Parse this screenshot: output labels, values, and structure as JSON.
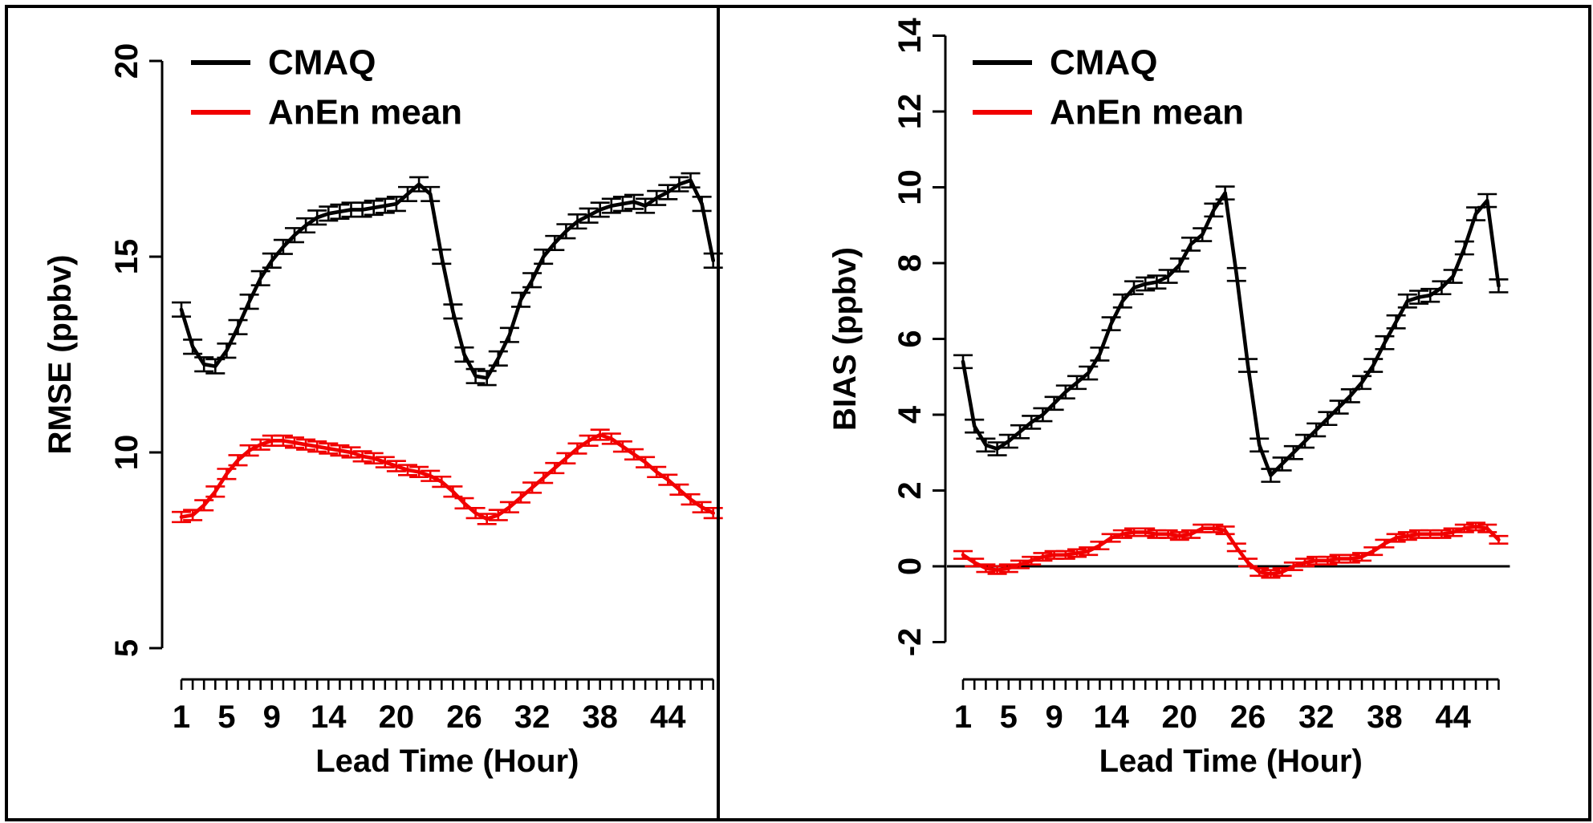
{
  "figure": {
    "background": "#ffffff",
    "frame_color": "#000000",
    "accent_red": "#f10000",
    "accent_black": "#000000"
  },
  "legend": {
    "entries": [
      {
        "label": "CMAQ",
        "color": "#000000"
      },
      {
        "label": "AnEn mean",
        "color": "#f10000"
      }
    ]
  },
  "chart_data": [
    {
      "type": "line",
      "title": "",
      "xlabel": "Lead Time (Hour)",
      "ylabel": "RMSE (ppbv)",
      "x": [
        1,
        2,
        3,
        4,
        5,
        6,
        7,
        8,
        9,
        10,
        11,
        12,
        13,
        14,
        15,
        16,
        17,
        18,
        19,
        20,
        21,
        22,
        23,
        24,
        25,
        26,
        27,
        28,
        29,
        30,
        31,
        32,
        33,
        34,
        35,
        36,
        37,
        38,
        39,
        40,
        41,
        42,
        43,
        44,
        45,
        46,
        47,
        48
      ],
      "xticks_labeled": [
        1,
        5,
        9,
        14,
        20,
        26,
        32,
        38,
        44
      ],
      "ylim": [
        5,
        20
      ],
      "yticks": [
        5,
        10,
        15,
        20
      ],
      "grid": false,
      "zero_line": false,
      "legend_position": "top-left",
      "series": [
        {
          "name": "CMAQ",
          "color": "#000000",
          "error_bar": 0.18,
          "values": [
            13.65,
            12.7,
            12.25,
            12.2,
            12.6,
            13.2,
            13.85,
            14.45,
            14.9,
            15.25,
            15.55,
            15.8,
            16.0,
            16.1,
            16.15,
            16.2,
            16.2,
            16.25,
            16.3,
            16.35,
            16.6,
            16.85,
            16.6,
            15.0,
            13.6,
            12.5,
            11.95,
            11.9,
            12.4,
            13.0,
            13.9,
            14.4,
            15.0,
            15.35,
            15.65,
            15.9,
            16.05,
            16.2,
            16.3,
            16.35,
            16.4,
            16.3,
            16.5,
            16.65,
            16.85,
            16.95,
            16.35,
            14.9
          ]
        },
        {
          "name": "AnEn mean",
          "color": "#f10000",
          "error_bar": 0.13,
          "values": [
            8.35,
            8.4,
            8.65,
            9.0,
            9.45,
            9.8,
            10.05,
            10.2,
            10.3,
            10.3,
            10.25,
            10.2,
            10.15,
            10.1,
            10.05,
            10.0,
            9.9,
            9.85,
            9.75,
            9.65,
            9.55,
            9.5,
            9.4,
            9.25,
            9.0,
            8.7,
            8.45,
            8.3,
            8.4,
            8.6,
            8.85,
            9.1,
            9.35,
            9.6,
            9.85,
            10.1,
            10.3,
            10.45,
            10.35,
            10.15,
            9.95,
            9.75,
            9.5,
            9.3,
            9.05,
            8.8,
            8.6,
            8.45
          ]
        }
      ]
    },
    {
      "type": "line",
      "title": "",
      "xlabel": "Lead Time (Hour)",
      "ylabel": "BIAS (ppbv)",
      "x": [
        1,
        2,
        3,
        4,
        5,
        6,
        7,
        8,
        9,
        10,
        11,
        12,
        13,
        14,
        15,
        16,
        17,
        18,
        19,
        20,
        21,
        22,
        23,
        24,
        25,
        26,
        27,
        28,
        29,
        30,
        31,
        32,
        33,
        34,
        35,
        36,
        37,
        38,
        39,
        40,
        41,
        42,
        43,
        44,
        45,
        46,
        47,
        48
      ],
      "xticks_labeled": [
        1,
        5,
        9,
        14,
        20,
        26,
        32,
        38,
        44
      ],
      "ylim": [
        -2,
        14
      ],
      "yticks": [
        -2,
        0,
        2,
        4,
        6,
        8,
        10,
        12,
        14
      ],
      "grid": false,
      "zero_line": true,
      "legend_position": "top-left",
      "series": [
        {
          "name": "CMAQ",
          "color": "#000000",
          "error_bar": 0.17,
          "values": [
            5.4,
            3.7,
            3.2,
            3.1,
            3.3,
            3.55,
            3.8,
            4.0,
            4.3,
            4.6,
            4.85,
            5.1,
            5.6,
            6.4,
            7.0,
            7.35,
            7.45,
            7.5,
            7.65,
            7.95,
            8.5,
            8.75,
            9.4,
            9.85,
            7.7,
            5.3,
            3.2,
            2.4,
            2.7,
            3.0,
            3.3,
            3.6,
            3.9,
            4.2,
            4.5,
            4.85,
            5.3,
            5.9,
            6.45,
            7.0,
            7.1,
            7.15,
            7.35,
            7.65,
            8.4,
            9.3,
            9.65,
            7.4
          ]
        },
        {
          "name": "AnEn mean",
          "color": "#f10000",
          "error_bar": 0.1,
          "values": [
            0.3,
            0.1,
            -0.05,
            -0.1,
            -0.05,
            0.05,
            0.15,
            0.25,
            0.3,
            0.3,
            0.35,
            0.4,
            0.55,
            0.75,
            0.85,
            0.9,
            0.9,
            0.85,
            0.85,
            0.8,
            0.85,
            1.0,
            1.0,
            0.95,
            0.5,
            0.1,
            -0.15,
            -0.2,
            -0.15,
            0.0,
            0.1,
            0.15,
            0.15,
            0.2,
            0.2,
            0.25,
            0.4,
            0.6,
            0.75,
            0.8,
            0.85,
            0.85,
            0.85,
            0.9,
            1.0,
            1.05,
            1.0,
            0.7
          ]
        }
      ]
    }
  ]
}
